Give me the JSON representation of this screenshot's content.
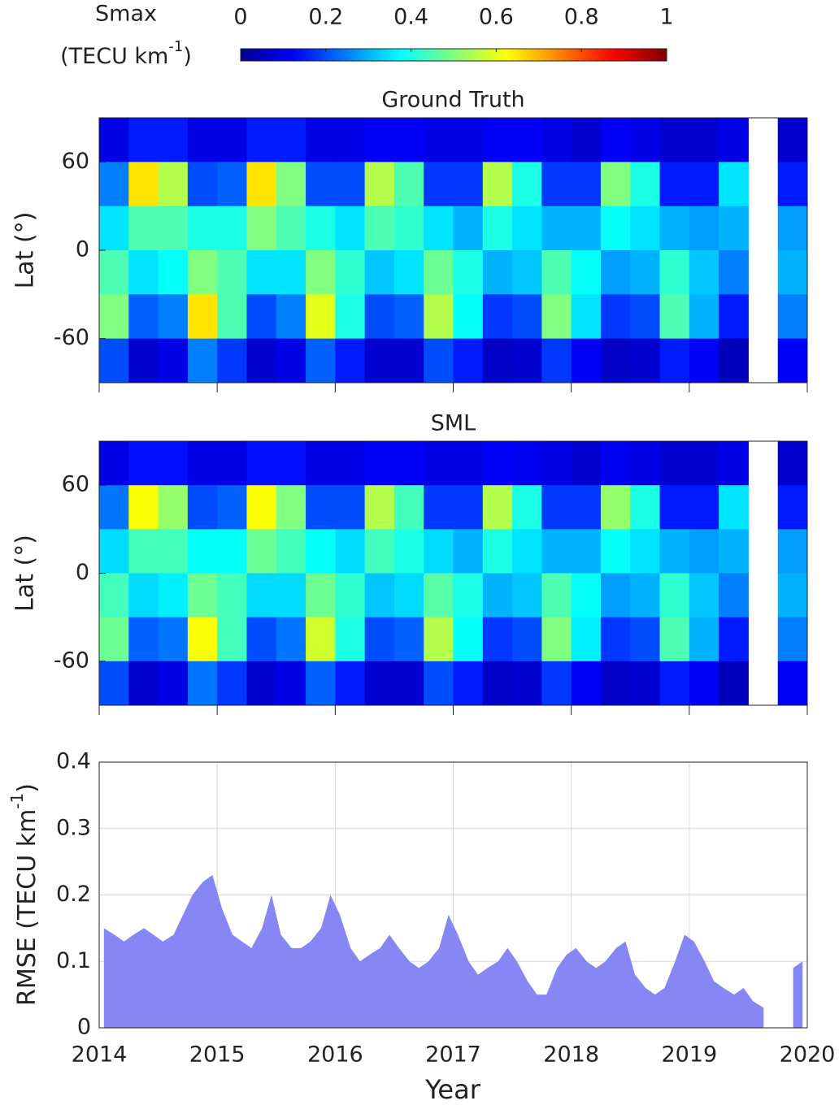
{
  "colorbar": {
    "label": "Smax",
    "unit": "(TECU km",
    "exp": "-1",
    "close": ")",
    "clim": [
      0,
      1
    ],
    "ticks": [
      0,
      0.2,
      0.4,
      0.6,
      0.8,
      1
    ],
    "colormap": "jet"
  },
  "chart_data": [
    {
      "type": "heatmap",
      "title": "Ground Truth",
      "ylabel": "Lat (°)",
      "xlim": [
        2014,
        2020
      ],
      "ylim": [
        -90,
        90
      ],
      "xticks": [
        2014,
        2015,
        2016,
        2017,
        2018,
        2019,
        2020
      ],
      "yticks": [
        -60,
        0,
        60
      ],
      "x_bins": [
        2014,
        2014.25,
        2014.5,
        2014.75,
        2015,
        2015.25,
        2015.5,
        2015.75,
        2016,
        2016.25,
        2016.5,
        2016.75,
        2017,
        2017.25,
        2017.5,
        2017.75,
        2018,
        2018.25,
        2018.5,
        2018.75,
        2019,
        2019.25,
        2019.5,
        2019.75,
        2020
      ],
      "y_bins": [
        90,
        60,
        30,
        0,
        -30,
        -60,
        -90
      ],
      "values": [
        [
          0.1,
          0.15,
          0.15,
          0.1,
          0.1,
          0.15,
          0.15,
          0.1,
          0.1,
          0.12,
          0.12,
          0.1,
          0.1,
          0.12,
          0.12,
          0.1,
          0.08,
          0.12,
          0.1,
          0.08,
          0.08,
          0.1,
          null,
          0.08
        ],
        [
          0.25,
          0.65,
          0.55,
          0.2,
          0.22,
          0.65,
          0.5,
          0.2,
          0.2,
          0.55,
          0.45,
          0.18,
          0.18,
          0.55,
          0.4,
          0.18,
          0.18,
          0.5,
          0.4,
          0.15,
          0.15,
          0.35,
          null,
          0.15
        ],
        [
          0.35,
          0.45,
          0.45,
          0.4,
          0.4,
          0.5,
          0.45,
          0.4,
          0.35,
          0.45,
          0.42,
          0.35,
          0.3,
          0.4,
          0.35,
          0.3,
          0.3,
          0.38,
          0.35,
          0.3,
          0.28,
          0.3,
          null,
          0.28
        ],
        [
          0.45,
          0.35,
          0.38,
          0.5,
          0.45,
          0.35,
          0.35,
          0.5,
          0.42,
          0.32,
          0.35,
          0.48,
          0.4,
          0.3,
          0.32,
          0.45,
          0.38,
          0.28,
          0.3,
          0.42,
          0.32,
          0.25,
          null,
          0.3
        ],
        [
          0.5,
          0.22,
          0.25,
          0.65,
          0.45,
          0.2,
          0.25,
          0.6,
          0.4,
          0.2,
          0.22,
          0.55,
          0.38,
          0.18,
          0.2,
          0.5,
          0.35,
          0.18,
          0.2,
          0.45,
          0.3,
          0.15,
          null,
          0.25
        ],
        [
          0.2,
          0.08,
          0.1,
          0.25,
          0.18,
          0.08,
          0.1,
          0.22,
          0.15,
          0.08,
          0.08,
          0.2,
          0.15,
          0.07,
          0.08,
          0.18,
          0.12,
          0.07,
          0.08,
          0.15,
          0.12,
          0.06,
          null,
          0.12
        ]
      ]
    },
    {
      "type": "heatmap",
      "title": "SML",
      "ylabel": "Lat (°)",
      "xlim": [
        2014,
        2020
      ],
      "ylim": [
        -90,
        90
      ],
      "xticks": [
        2014,
        2015,
        2016,
        2017,
        2018,
        2019,
        2020
      ],
      "yticks": [
        -60,
        0,
        60
      ],
      "x_bins": [
        2014,
        2014.25,
        2014.5,
        2014.75,
        2015,
        2015.25,
        2015.5,
        2015.75,
        2016,
        2016.25,
        2016.5,
        2016.75,
        2017,
        2017.25,
        2017.5,
        2017.75,
        2018,
        2018.25,
        2018.5,
        2018.75,
        2019,
        2019.25,
        2019.5,
        2019.75,
        2020
      ],
      "y_bins": [
        90,
        60,
        30,
        0,
        -30,
        -60,
        -90
      ],
      "values": [
        [
          0.1,
          0.14,
          0.14,
          0.1,
          0.1,
          0.14,
          0.14,
          0.1,
          0.1,
          0.12,
          0.12,
          0.1,
          0.1,
          0.12,
          0.11,
          0.1,
          0.08,
          0.11,
          0.1,
          0.08,
          0.08,
          0.1,
          null,
          0.08
        ],
        [
          0.24,
          0.62,
          0.52,
          0.2,
          0.22,
          0.62,
          0.5,
          0.2,
          0.2,
          0.55,
          0.44,
          0.18,
          0.18,
          0.55,
          0.4,
          0.18,
          0.18,
          0.52,
          0.4,
          0.15,
          0.15,
          0.35,
          null,
          0.15
        ],
        [
          0.34,
          0.44,
          0.44,
          0.38,
          0.38,
          0.48,
          0.44,
          0.38,
          0.34,
          0.44,
          0.4,
          0.34,
          0.3,
          0.4,
          0.35,
          0.3,
          0.3,
          0.38,
          0.35,
          0.3,
          0.28,
          0.3,
          null,
          0.28
        ],
        [
          0.44,
          0.34,
          0.36,
          0.48,
          0.44,
          0.34,
          0.34,
          0.48,
          0.42,
          0.32,
          0.34,
          0.46,
          0.4,
          0.3,
          0.32,
          0.45,
          0.38,
          0.28,
          0.3,
          0.42,
          0.32,
          0.25,
          null,
          0.3
        ],
        [
          0.48,
          0.22,
          0.24,
          0.62,
          0.44,
          0.2,
          0.24,
          0.58,
          0.4,
          0.2,
          0.22,
          0.55,
          0.38,
          0.18,
          0.2,
          0.5,
          0.36,
          0.18,
          0.2,
          0.45,
          0.3,
          0.15,
          null,
          0.25
        ],
        [
          0.2,
          0.08,
          0.1,
          0.24,
          0.18,
          0.08,
          0.1,
          0.22,
          0.15,
          0.08,
          0.08,
          0.2,
          0.15,
          0.07,
          0.08,
          0.18,
          0.12,
          0.07,
          0.08,
          0.15,
          0.12,
          0.06,
          null,
          0.12
        ]
      ]
    },
    {
      "type": "area",
      "xlabel": "Year",
      "ylabel": {
        "text": "RMSE (TECU km",
        "exp": "-1",
        "close": ")"
      },
      "color": "#8080f4",
      "grid": true,
      "xlim": [
        2014,
        2020
      ],
      "ylim": [
        0,
        0.4
      ],
      "xticks": [
        2014,
        2015,
        2016,
        2017,
        2018,
        2019,
        2020
      ],
      "yticks": [
        0,
        0.1,
        0.2,
        0.3,
        0.4
      ],
      "x": [
        2014.04,
        2014.13,
        2014.21,
        2014.29,
        2014.38,
        2014.46,
        2014.54,
        2014.63,
        2014.71,
        2014.79,
        2014.88,
        2014.96,
        2015.04,
        2015.13,
        2015.21,
        2015.29,
        2015.38,
        2015.46,
        2015.54,
        2015.63,
        2015.71,
        2015.79,
        2015.88,
        2015.96,
        2016.04,
        2016.13,
        2016.21,
        2016.29,
        2016.38,
        2016.46,
        2016.54,
        2016.63,
        2016.71,
        2016.79,
        2016.88,
        2016.96,
        2017.04,
        2017.13,
        2017.21,
        2017.29,
        2017.38,
        2017.46,
        2017.54,
        2017.63,
        2017.71,
        2017.79,
        2017.88,
        2017.96,
        2018.04,
        2018.13,
        2018.21,
        2018.29,
        2018.38,
        2018.46,
        2018.54,
        2018.63,
        2018.71,
        2018.79,
        2018.88,
        2018.96,
        2019.04,
        2019.13,
        2019.21,
        2019.29,
        2019.38,
        2019.46,
        2019.54,
        2019.63,
        2019.71,
        2019.79,
        2019.88,
        2019.96
      ],
      "values": [
        0.15,
        0.14,
        0.13,
        0.14,
        0.15,
        0.14,
        0.13,
        0.14,
        0.17,
        0.2,
        0.22,
        0.23,
        0.18,
        0.14,
        0.13,
        0.12,
        0.15,
        0.2,
        0.14,
        0.12,
        0.12,
        0.13,
        0.15,
        0.2,
        0.17,
        0.12,
        0.1,
        0.11,
        0.12,
        0.14,
        0.12,
        0.1,
        0.09,
        0.1,
        0.12,
        0.17,
        0.14,
        0.1,
        0.08,
        0.09,
        0.1,
        0.12,
        0.1,
        0.07,
        0.05,
        0.05,
        0.09,
        0.11,
        0.12,
        0.1,
        0.09,
        0.1,
        0.12,
        0.13,
        0.08,
        0.06,
        0.05,
        0.06,
        0.1,
        0.14,
        0.13,
        0.1,
        0.07,
        0.06,
        0.05,
        0.06,
        0.04,
        0.03,
        null,
        null,
        0.09,
        0.1
      ]
    }
  ]
}
